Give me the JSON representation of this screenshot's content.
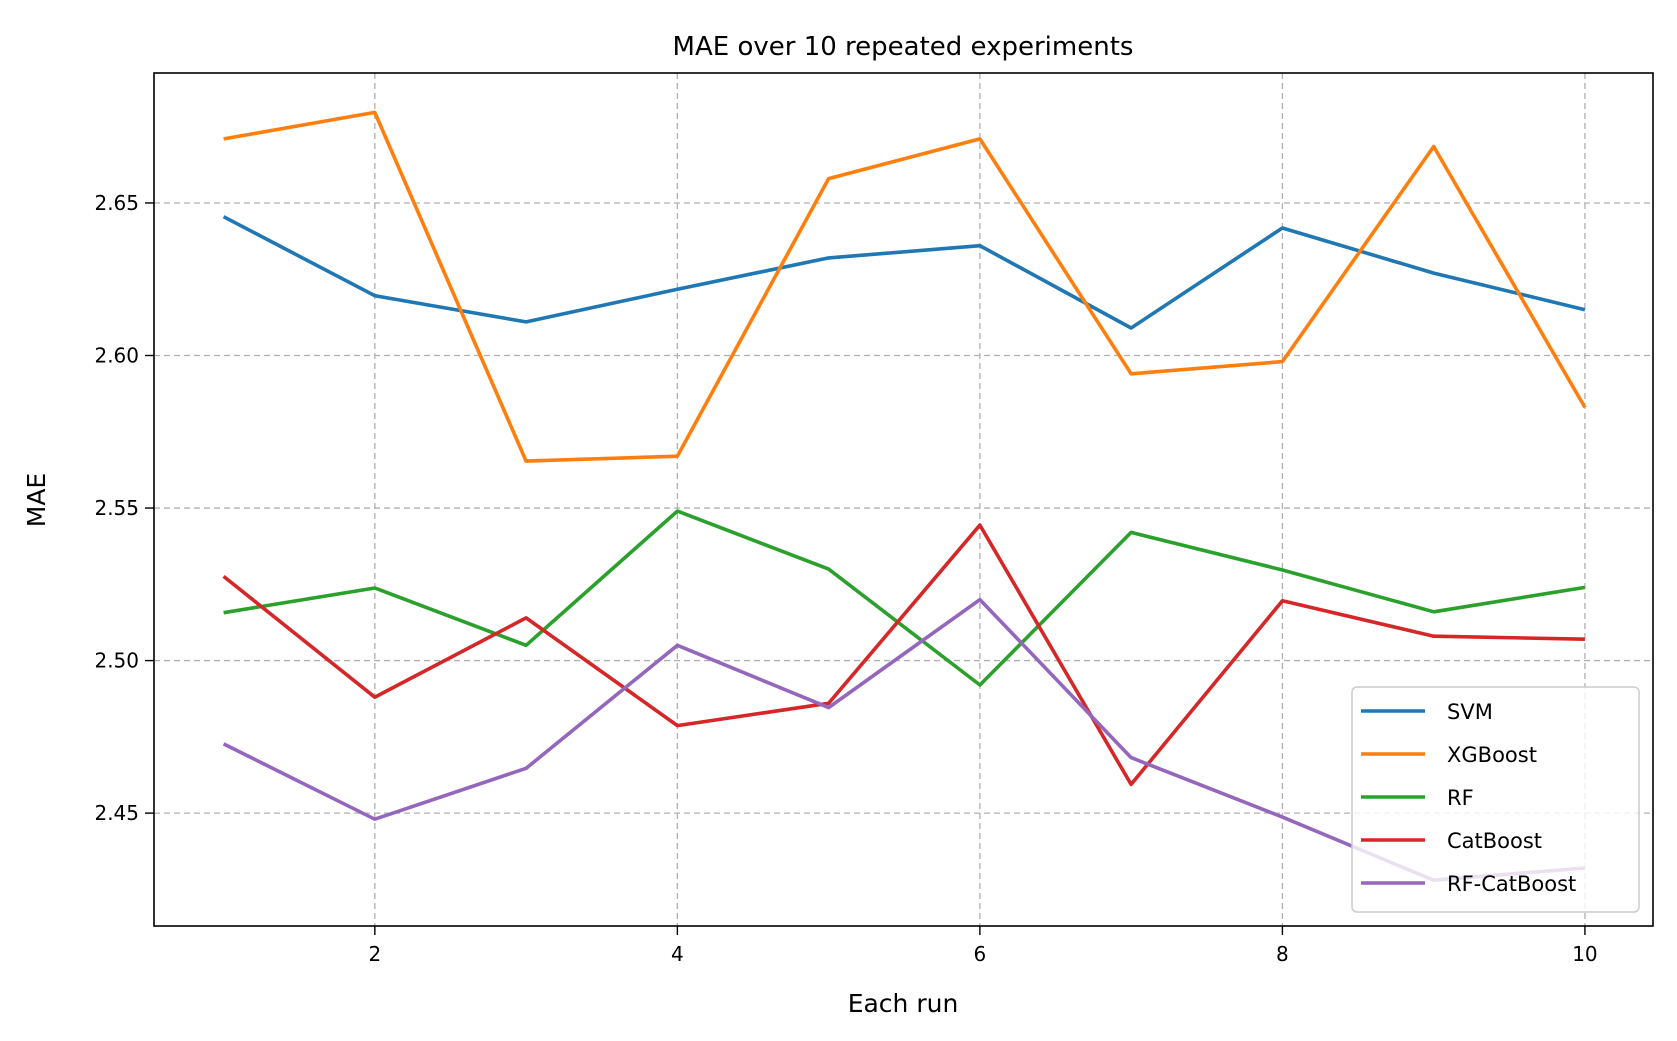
{
  "chart_data": {
    "type": "line",
    "title": "MAE over 10 repeated experiments",
    "xlabel": "Each run",
    "ylabel": "MAE",
    "x": [
      1,
      2,
      3,
      4,
      5,
      6,
      7,
      8,
      9,
      10
    ],
    "xlim": [
      0.54,
      10.45
    ],
    "ylim": [
      2.413,
      2.6926
    ],
    "xticks": [
      2,
      4,
      6,
      8,
      10
    ],
    "xtick_labels": [
      "2",
      "4",
      "6",
      "8",
      "10"
    ],
    "yticks": [
      2.45,
      2.5,
      2.55,
      2.6,
      2.65
    ],
    "ytick_labels": [
      "2.45",
      "2.50",
      "2.55",
      "2.60",
      "2.65"
    ],
    "grid": true,
    "legend_position": "bottom-right",
    "series": [
      {
        "name": "SVM",
        "color": "#1f77b4",
        "values": [
          2.6455,
          2.6196,
          2.611,
          2.6217,
          2.632,
          2.636,
          2.609,
          2.6418,
          2.627,
          2.615
        ]
      },
      {
        "name": "XGBoost",
        "color": "#ff7f0e",
        "values": [
          2.671,
          2.6797,
          2.5654,
          2.567,
          2.658,
          2.671,
          2.594,
          2.598,
          2.6685,
          2.583
        ]
      },
      {
        "name": "RF",
        "color": "#2ca02c",
        "values": [
          2.5157,
          2.5238,
          2.505,
          2.549,
          2.53,
          2.492,
          2.542,
          2.5297,
          2.516,
          2.524
        ]
      },
      {
        "name": "CatBoost",
        "color": "#d62728",
        "values": [
          2.5276,
          2.488,
          2.514,
          2.4787,
          2.486,
          2.5444,
          2.4594,
          2.5196,
          2.508,
          2.507
        ]
      },
      {
        "name": "RF-CatBoost",
        "color": "#9467bd",
        "values": [
          2.4727,
          2.448,
          2.4647,
          2.505,
          2.4846,
          2.52,
          2.4682,
          2.4487,
          2.428,
          2.432
        ]
      }
    ]
  }
}
